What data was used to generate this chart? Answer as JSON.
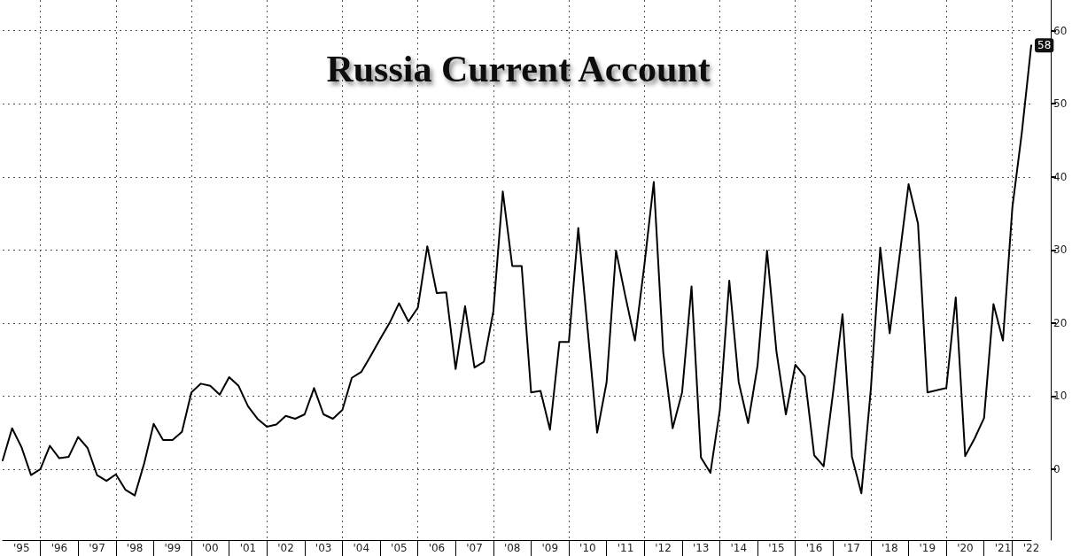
{
  "chart_data": {
    "type": "line",
    "title": "Russia Current Account",
    "categories": [
      null,
      null,
      "'95",
      null,
      null,
      null,
      "'96",
      null,
      null,
      null,
      "'97",
      null,
      null,
      null,
      "'98",
      null,
      null,
      null,
      "'99",
      null,
      null,
      null,
      "'00",
      null,
      null,
      null,
      "'01",
      null,
      null,
      null,
      "'02",
      null,
      null,
      null,
      "'03",
      null,
      null,
      null,
      "'04",
      null,
      null,
      null,
      "'05",
      null,
      null,
      null,
      "'06",
      null,
      null,
      null,
      "'07",
      null,
      null,
      null,
      "'08",
      null,
      null,
      null,
      "'09",
      null,
      null,
      null,
      "'10",
      null,
      null,
      null,
      "'11",
      null,
      null,
      null,
      "'12",
      null,
      null,
      null,
      "'13",
      null,
      null,
      null,
      "'14",
      null,
      null,
      null,
      "'15",
      null,
      null,
      null,
      "'16",
      null,
      null,
      null,
      "'17",
      null,
      null,
      null,
      "'18",
      null,
      null,
      null,
      "'19",
      null,
      null,
      null,
      "'20",
      null,
      null,
      null,
      "'21",
      null,
      null,
      "'22"
    ],
    "values": [
      1.2,
      5.6,
      3.0,
      -0.8,
      0,
      3.2,
      1.5,
      1.7,
      4.4,
      2.9,
      -0.8,
      -1.6,
      -0.7,
      -2.8,
      -3.6,
      0.8,
      6.2,
      4.0,
      4.0,
      5.1,
      10.5,
      11.7,
      11.4,
      10.2,
      12.6,
      11.4,
      8.6,
      6.9,
      5.8,
      6.1,
      7.3,
      6.9,
      7.5,
      11.1,
      7.5,
      6.9,
      8.1,
      12.5,
      13.3,
      15.5,
      17.8,
      20.0,
      22.7,
      20.2,
      22.1,
      30.5,
      24.1,
      24.2,
      13.7,
      22.3,
      13.9,
      14.7,
      21.6,
      38.0,
      27.8,
      27.8,
      10.5,
      10.7,
      5.4,
      17.4,
      17.4,
      33.0,
      19.0,
      5.0,
      11.9,
      29.9,
      23.6,
      17.6,
      27.9,
      39.3,
      16.0,
      5.6,
      10.5,
      25.0,
      1.6,
      -0.5,
      8.1,
      25.8,
      11.9,
      6.3,
      14.2,
      29.9,
      16.1,
      7.5,
      14.3,
      12.7,
      1.9,
      0.4,
      10.5,
      21.2,
      1.7,
      -3.3,
      10.9,
      30.3,
      18.6,
      28.7,
      39.0,
      33.6,
      10.5,
      10.8,
      11.1,
      23.5,
      1.8,
      4.2,
      7.0,
      22.6,
      17.6,
      35.8,
      46.0,
      58
    ],
    "value_labels": [
      null,
      null,
      null,
      null,
      null,
      null,
      null,
      null,
      null,
      null,
      null,
      null,
      null,
      null,
      null,
      null,
      null,
      null,
      null,
      null,
      null,
      null,
      null,
      null,
      null,
      null,
      null,
      null,
      null,
      null,
      null,
      null,
      null,
      null,
      null,
      null,
      null,
      null,
      null,
      null,
      null,
      null,
      null,
      null,
      null,
      null,
      null,
      null,
      null,
      null,
      null,
      null,
      null,
      null,
      null,
      null,
      null,
      null,
      null,
      null,
      null,
      null,
      null,
      null,
      null,
      null,
      null,
      null,
      null,
      null,
      null,
      null,
      null,
      null,
      null,
      null,
      null,
      null,
      null,
      null,
      null,
      null,
      null,
      null,
      null,
      null,
      null,
      null,
      null,
      null,
      null,
      null,
      null,
      null,
      null,
      null,
      null,
      null,
      null,
      null,
      null,
      null,
      null,
      null,
      null,
      null,
      null,
      null,
      null,
      "58"
    ],
    "color": "#000000",
    "ylim": [
      -9.7,
      64.2
    ],
    "yticks": [
      0,
      10,
      20,
      30,
      40,
      50,
      60
    ],
    "grid": true,
    "marker": "none",
    "line_style": "solid"
  }
}
